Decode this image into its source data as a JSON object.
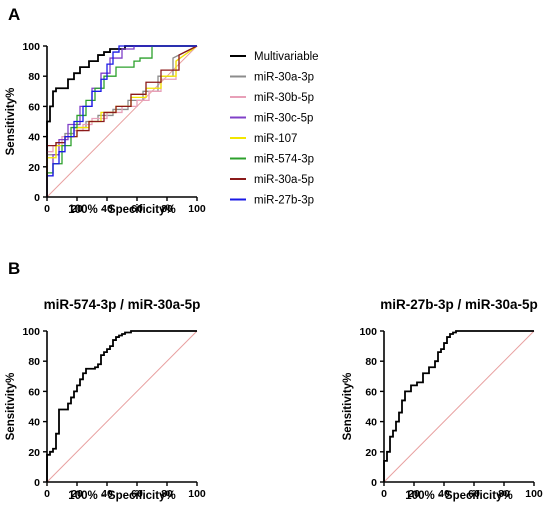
{
  "panels": {
    "a_letter": "A",
    "b_letter": "B"
  },
  "chart_data": [
    {
      "type": "line",
      "panel": "A",
      "title": "",
      "xlabel": "100% - Specificity%",
      "ylabel": "Sensitivity%",
      "xlim": [
        0,
        100
      ],
      "ylim": [
        0,
        100
      ],
      "xticks": [
        0,
        20,
        40,
        60,
        80,
        100
      ],
      "yticks": [
        0,
        20,
        40,
        60,
        80,
        100
      ],
      "xtick_labels": [
        "0",
        "20",
        "40",
        "60",
        "80",
        "100"
      ],
      "ytick_labels": [
        "0",
        "20",
        "40",
        "60",
        "80",
        "100"
      ],
      "grid": false,
      "legend": "right",
      "reference_line": {
        "color": "#e8a0a0",
        "from": [
          0,
          0
        ],
        "to": [
          100,
          100
        ]
      },
      "series": [
        {
          "name": "Multivariable",
          "color": "#000000",
          "x": [
            0,
            0,
            2,
            2,
            4,
            4,
            6,
            6,
            14,
            14,
            18,
            18,
            22,
            22,
            28,
            28,
            34,
            34,
            38,
            38,
            42,
            42,
            52,
            52,
            100
          ],
          "y": [
            0,
            50,
            50,
            60,
            60,
            70,
            70,
            72,
            72,
            78,
            78,
            82,
            82,
            86,
            86,
            90,
            90,
            94,
            94,
            96,
            96,
            98,
            98,
            100,
            100
          ]
        },
        {
          "name": "miR-30a-3p",
          "color": "#8c8c8c",
          "x": [
            0,
            0,
            6,
            6,
            12,
            12,
            18,
            18,
            26,
            26,
            34,
            34,
            44,
            44,
            54,
            54,
            64,
            64,
            74,
            74,
            84,
            84,
            100
          ],
          "y": [
            0,
            28,
            28,
            36,
            36,
            42,
            42,
            46,
            46,
            50,
            50,
            54,
            54,
            58,
            58,
            64,
            64,
            70,
            70,
            80,
            80,
            92,
            100
          ]
        },
        {
          "name": "miR-30b-5p",
          "color": "#e8a0b8",
          "x": [
            0,
            0,
            4,
            4,
            10,
            10,
            18,
            18,
            24,
            24,
            30,
            30,
            40,
            40,
            50,
            50,
            60,
            60,
            68,
            68,
            76,
            76,
            86,
            86,
            100
          ],
          "y": [
            0,
            30,
            30,
            34,
            34,
            40,
            40,
            44,
            44,
            48,
            48,
            52,
            52,
            56,
            56,
            60,
            60,
            64,
            64,
            70,
            70,
            78,
            78,
            90,
            100
          ]
        },
        {
          "name": "miR-30c-5p",
          "color": "#8040c8",
          "x": [
            0,
            0,
            4,
            4,
            8,
            8,
            14,
            14,
            22,
            22,
            30,
            30,
            36,
            36,
            42,
            42,
            50,
            50,
            58,
            58,
            100
          ],
          "y": [
            0,
            14,
            14,
            28,
            28,
            38,
            38,
            48,
            48,
            60,
            60,
            72,
            72,
            82,
            82,
            92,
            92,
            98,
            98,
            100,
            100
          ]
        },
        {
          "name": "miR-107",
          "color": "#f2e600",
          "x": [
            0,
            0,
            6,
            6,
            12,
            12,
            20,
            20,
            28,
            28,
            36,
            36,
            46,
            46,
            56,
            56,
            66,
            66,
            76,
            76,
            86,
            86,
            100
          ],
          "y": [
            0,
            26,
            26,
            34,
            34,
            40,
            40,
            46,
            46,
            50,
            50,
            56,
            56,
            60,
            60,
            66,
            66,
            72,
            72,
            80,
            80,
            90,
            100
          ]
        },
        {
          "name": "miR-574-3p",
          "color": "#2ca02c",
          "x": [
            0,
            0,
            4,
            4,
            10,
            10,
            16,
            16,
            20,
            20,
            26,
            26,
            32,
            32,
            38,
            38,
            46,
            46,
            58,
            58,
            62,
            62,
            70,
            70,
            100
          ],
          "y": [
            0,
            16,
            16,
            22,
            22,
            34,
            34,
            46,
            46,
            54,
            54,
            64,
            64,
            72,
            72,
            80,
            80,
            86,
            86,
            90,
            90,
            92,
            92,
            100,
            100
          ]
        },
        {
          "name": "miR-30a-5p",
          "color": "#8b1a1a",
          "x": [
            0,
            0,
            6,
            6,
            12,
            12,
            20,
            20,
            28,
            28,
            38,
            38,
            46,
            46,
            56,
            56,
            66,
            66,
            76,
            76,
            88,
            88,
            100
          ],
          "y": [
            0,
            34,
            34,
            36,
            36,
            40,
            40,
            44,
            44,
            50,
            50,
            56,
            56,
            60,
            60,
            68,
            68,
            76,
            76,
            84,
            84,
            94,
            100
          ]
        },
        {
          "name": "miR-27b-3p",
          "color": "#1a1ae6",
          "x": [
            0,
            0,
            4,
            4,
            8,
            8,
            12,
            12,
            18,
            18,
            24,
            24,
            30,
            30,
            36,
            36,
            40,
            40,
            44,
            44,
            48,
            48,
            100
          ],
          "y": [
            0,
            14,
            14,
            22,
            22,
            30,
            30,
            40,
            40,
            50,
            50,
            60,
            60,
            70,
            70,
            78,
            78,
            88,
            88,
            96,
            96,
            100,
            100
          ]
        }
      ]
    },
    {
      "type": "line",
      "panel": "B-left",
      "title": "miR-574-3p / miR-30a-5p",
      "xlabel": "100% - Specificity%",
      "ylabel": "Sensitivity%",
      "xlim": [
        0,
        100
      ],
      "ylim": [
        0,
        100
      ],
      "xticks": [
        0,
        20,
        40,
        60,
        80,
        100
      ],
      "yticks": [
        0,
        20,
        40,
        60,
        80,
        100
      ],
      "xtick_labels": [
        "0",
        "20",
        "40",
        "60",
        "80",
        "100"
      ],
      "ytick_labels": [
        "0",
        "20",
        "40",
        "60",
        "80",
        "100"
      ],
      "grid": false,
      "reference_line": {
        "color": "#e8a0a0",
        "from": [
          0,
          0
        ],
        "to": [
          100,
          100
        ]
      },
      "series": [
        {
          "color": "#000000",
          "x": [
            0,
            0,
            2,
            2,
            4,
            4,
            6,
            6,
            8,
            8,
            14,
            14,
            16,
            16,
            18,
            18,
            20,
            20,
            22,
            22,
            24,
            24,
            26,
            26,
            32,
            32,
            34,
            34,
            36,
            36,
            38,
            38,
            40,
            40,
            42,
            42,
            44,
            44,
            46,
            46,
            48,
            48,
            50,
            50,
            52,
            52,
            56,
            56,
            100
          ],
          "y": [
            0,
            18,
            18,
            20,
            20,
            22,
            22,
            32,
            32,
            48,
            48,
            52,
            52,
            56,
            56,
            60,
            60,
            64,
            64,
            68,
            68,
            72,
            72,
            75,
            75,
            76,
            76,
            78,
            78,
            84,
            84,
            86,
            86,
            88,
            88,
            90,
            90,
            94,
            94,
            96,
            96,
            97,
            97,
            98,
            98,
            99,
            99,
            100,
            100
          ]
        }
      ]
    },
    {
      "type": "line",
      "panel": "B-right",
      "title": "miR-27b-3p / miR-30a-5p",
      "xlabel": "100% - Specificity%",
      "ylabel": "Sensitivity%",
      "xlim": [
        0,
        100
      ],
      "ylim": [
        0,
        100
      ],
      "xticks": [
        0,
        20,
        40,
        60,
        80,
        100
      ],
      "yticks": [
        0,
        20,
        40,
        60,
        80,
        100
      ],
      "xtick_labels": [
        "0",
        "20",
        "40",
        "60",
        "80",
        "100"
      ],
      "ytick_labels": [
        "0",
        "20",
        "40",
        "60",
        "80",
        "100"
      ],
      "grid": false,
      "reference_line": {
        "color": "#e8a0a0",
        "from": [
          0,
          0
        ],
        "to": [
          100,
          100
        ]
      },
      "series": [
        {
          "color": "#000000",
          "x": [
            0,
            0,
            2,
            2,
            4,
            4,
            6,
            6,
            8,
            8,
            10,
            10,
            12,
            12,
            14,
            14,
            18,
            18,
            22,
            22,
            26,
            26,
            30,
            30,
            34,
            34,
            36,
            36,
            38,
            38,
            40,
            40,
            42,
            42,
            44,
            44,
            46,
            46,
            48,
            48,
            100
          ],
          "y": [
            0,
            14,
            14,
            20,
            20,
            30,
            30,
            34,
            34,
            40,
            40,
            46,
            46,
            54,
            54,
            60,
            60,
            64,
            64,
            66,
            66,
            72,
            72,
            76,
            76,
            80,
            80,
            86,
            86,
            88,
            88,
            92,
            92,
            96,
            96,
            98,
            98,
            99,
            99,
            100,
            100
          ]
        }
      ]
    }
  ]
}
